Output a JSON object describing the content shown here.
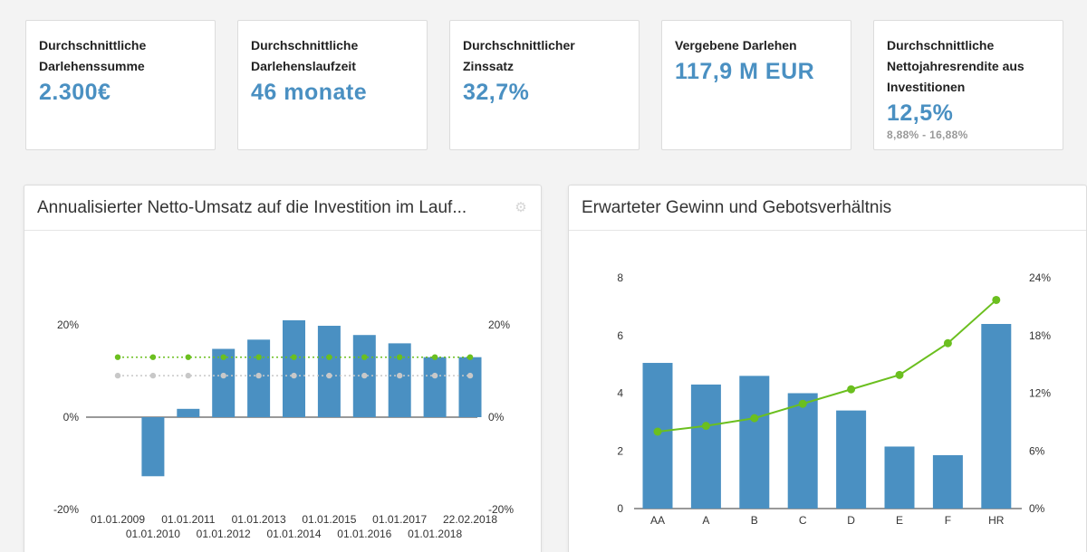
{
  "kpis": [
    {
      "label": "Durchschnittliche Darlehenssumme",
      "value": "2.300€",
      "sub": ""
    },
    {
      "label": "Durchschnittliche Darlehenslaufzeit",
      "value": "46 monate",
      "sub": ""
    },
    {
      "label": "Durchschnittlicher Zinssatz",
      "value": "32,7%",
      "sub": ""
    },
    {
      "label": "Vergebene Darlehen",
      "value": "117,9 M EUR",
      "sub": ""
    },
    {
      "label": "Durchschnittliche Nettojahresrendite aus Investitionen",
      "value": "12,5%",
      "sub": "8,88% - 16,88%"
    }
  ],
  "colors": {
    "bar": "#4a90c2",
    "green": "#6bbf1f",
    "gray": "#c8c8c8",
    "accent": "#4a90c2"
  },
  "chart_data": [
    {
      "type": "bar",
      "title": "Annualisierter Netto-Umsatz auf die Investition im Lauf...",
      "categories": [
        "01.01.2009",
        "01.01.2010",
        "01.01.2011",
        "01.01.2012",
        "01.01.2013",
        "01.01.2014",
        "01.01.2015",
        "01.01.2016",
        "01.01.2017",
        "01.01.2018",
        "22.02.2018"
      ],
      "series": [
        {
          "type": "bar",
          "values": [
            0,
            -12.8,
            1.8,
            14.8,
            16.8,
            21,
            19.8,
            17.8,
            16,
            13,
            13
          ]
        },
        {
          "type": "line",
          "values": [
            13,
            13,
            13,
            13,
            13,
            13,
            13,
            13,
            13,
            13,
            13
          ]
        },
        {
          "type": "line",
          "values": [
            9,
            9,
            9,
            9,
            9,
            9,
            9,
            9,
            9,
            9,
            9
          ]
        }
      ],
      "ylim": [
        -20,
        20
      ],
      "yticks": [
        "20%",
        "0%",
        "-20%"
      ],
      "y2ticks": [
        "20%",
        "0%",
        "-20%"
      ],
      "grid": false,
      "legend": "none"
    },
    {
      "type": "bar",
      "title": "Erwarteter Gewinn und Gebotsverhältnis",
      "categories": [
        "AA",
        "A",
        "B",
        "C",
        "D",
        "E",
        "F",
        "HR"
      ],
      "series": [
        {
          "type": "bar",
          "axis": "left",
          "values": [
            5.05,
            4.3,
            4.6,
            4.0,
            3.4,
            2.15,
            1.85,
            6.4
          ]
        },
        {
          "type": "line",
          "axis": "right",
          "values": [
            8.0,
            8.6,
            9.4,
            10.9,
            12.4,
            13.9,
            17.2,
            21.7
          ]
        }
      ],
      "ylim": [
        0,
        8
      ],
      "y2lim": [
        0,
        24
      ],
      "yticks": [
        "0",
        "2",
        "4",
        "6",
        "8"
      ],
      "y2ticks": [
        "0%",
        "6%",
        "12%",
        "18%",
        "24%"
      ],
      "grid": false,
      "legend": "none"
    }
  ]
}
